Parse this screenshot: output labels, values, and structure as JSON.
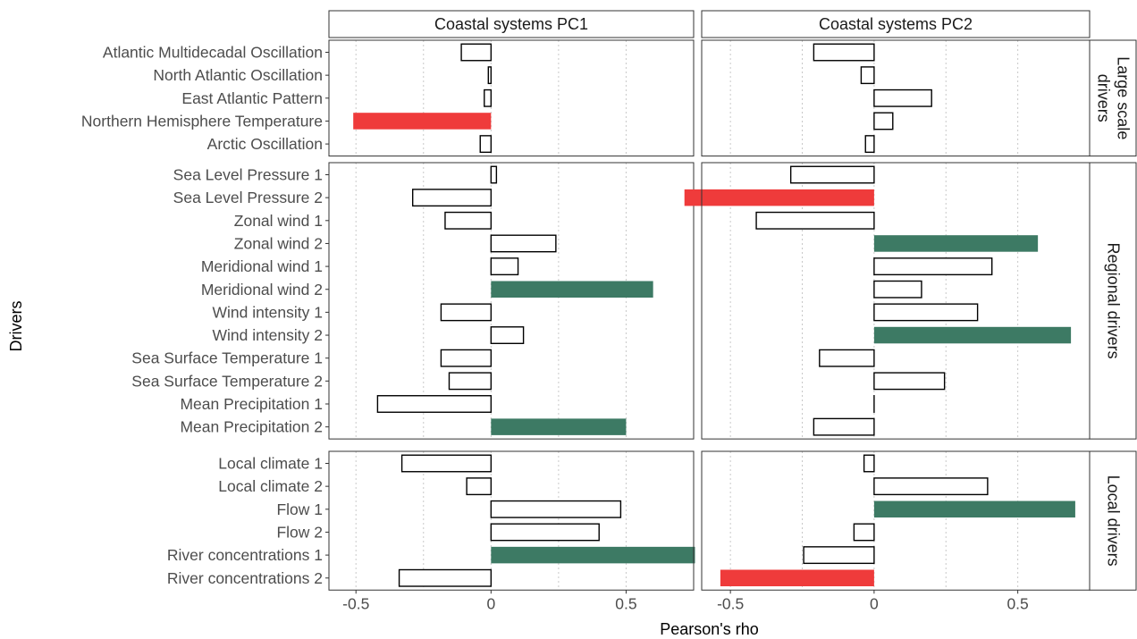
{
  "chart_data": {
    "type": "bar",
    "orientation": "horizontal",
    "xlabel": "Pearson's rho",
    "ylabel": "Drivers",
    "x_ticks": [
      -0.5,
      0,
      0.5
    ],
    "x_tick_labels": [
      "-0.5",
      "0",
      "0.5"
    ],
    "xlim": [
      -0.6,
      0.75
    ],
    "grid": "vertical dotted",
    "colors": {
      "negative": "#ef3b3b",
      "positive": "#3d7a64",
      "none": "#ffffff",
      "outline": "#000000"
    },
    "columns": [
      "Coastal systems PC1",
      "Coastal systems PC2"
    ],
    "groups": [
      {
        "label_lines": [
          "Large scale",
          "drivers"
        ],
        "drivers": [
          "Atlantic Multidecadal Oscillation",
          "North Atlantic Oscillation",
          "East Atlantic Pattern",
          "Northern Hemisphere Temperature",
          "Arctic Oscillation"
        ],
        "values": [
          [
            -0.11,
            -0.01,
            -0.025,
            -0.51,
            -0.04
          ],
          [
            -0.21,
            -0.045,
            0.2,
            0.065,
            -0.03
          ]
        ],
        "highlight": [
          [
            "none",
            "none",
            "none",
            "neg",
            "none"
          ],
          [
            "none",
            "none",
            "none",
            "none",
            "none"
          ]
        ]
      },
      {
        "label_lines": [
          "Regional drivers"
        ],
        "drivers": [
          "Sea Level Pressure 1",
          "Sea Level Pressure 2",
          "Zonal wind 1",
          "Zonal wind 2",
          "Meridional wind 1",
          "Meridional wind 2",
          "Wind intensity 1",
          "Wind intensity 2",
          "Sea Surface Temperature 1",
          "Sea Surface Temperature 2",
          "Mean Precipitation 1",
          "Mean Precipitation 2"
        ],
        "values": [
          [
            0.02,
            -0.29,
            -0.17,
            0.24,
            0.1,
            0.6,
            -0.185,
            0.12,
            -0.185,
            -0.155,
            -0.42,
            0.5
          ],
          [
            -0.29,
            -0.66,
            -0.41,
            0.57,
            0.41,
            0.165,
            0.36,
            0.685,
            -0.19,
            0.245,
            0.0,
            -0.21
          ]
        ],
        "highlight": [
          [
            "none",
            "none",
            "none",
            "none",
            "none",
            "pos",
            "none",
            "none",
            "none",
            "none",
            "none",
            "pos"
          ],
          [
            "none",
            "neg",
            "none",
            "pos",
            "none",
            "none",
            "none",
            "pos",
            "none",
            "none",
            "none",
            "none"
          ]
        ]
      },
      {
        "label_lines": [
          "Local drivers"
        ],
        "drivers": [
          "Local climate 1",
          "Local climate 2",
          "Flow 1",
          "Flow 2",
          "River concentrations 1",
          "River concentrations 2"
        ],
        "values": [
          [
            -0.33,
            -0.09,
            0.48,
            0.4,
            0.755,
            -0.34
          ],
          [
            -0.035,
            0.395,
            0.7,
            -0.07,
            -0.245,
            -0.535
          ]
        ],
        "highlight": [
          [
            "none",
            "none",
            "none",
            "none",
            "pos",
            "none"
          ],
          [
            "none",
            "none",
            "pos",
            "none",
            "none",
            "neg"
          ]
        ]
      }
    ]
  }
}
